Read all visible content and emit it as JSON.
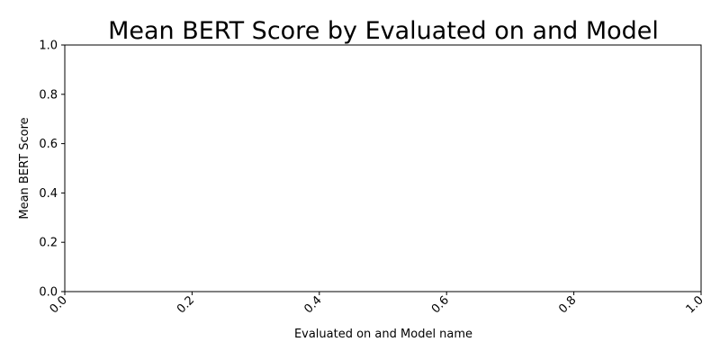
{
  "chart_data": {
    "type": "bar",
    "title": "Mean BERT Score by Evaluated on and Model",
    "xlabel": "Evaluated on and Model name",
    "ylabel": "Mean BERT Score",
    "categories": [],
    "values": [],
    "xlim": [
      0.0,
      1.0
    ],
    "ylim": [
      0.0,
      1.0
    ],
    "x_ticks": [
      "0.0",
      "0.2",
      "0.4",
      "0.6",
      "0.8",
      "1.0"
    ],
    "y_ticks": [
      "0.0",
      "0.2",
      "0.4",
      "0.6",
      "0.8",
      "1.0"
    ],
    "x_tick_rotation": "45 degrees",
    "grid": false,
    "legend": "none",
    "colors": {
      "axis": "#000000",
      "background": "#ffffff"
    }
  }
}
